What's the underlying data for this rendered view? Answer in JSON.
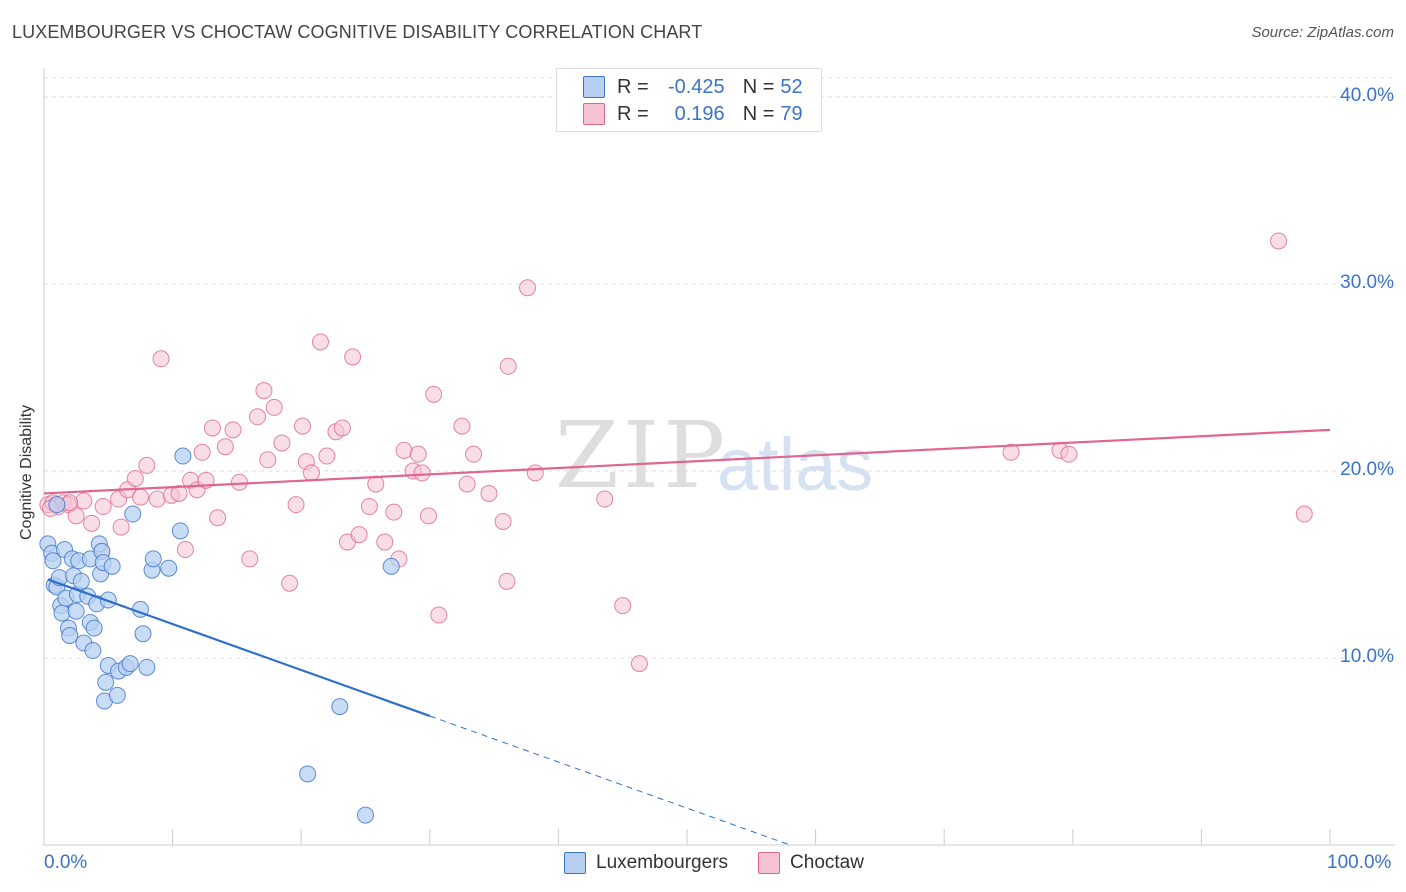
{
  "title": "LUXEMBOURGER VS CHOCTAW COGNITIVE DISABILITY CORRELATION CHART",
  "source": "Source: ZipAtlas.com",
  "watermark": {
    "zip": "ZIP",
    "atlas": "atlas"
  },
  "colors": {
    "blue": "#3a73c9",
    "blue_fill": "#b7d0f2",
    "blue_line": "#2f6fcc",
    "pink": "#e0668e",
    "pink_fill": "#f6c3d3",
    "grid": "#dddddd"
  },
  "legend": {
    "rows": [
      {
        "swatch": "blue",
        "r_label": "R =",
        "r_value": "-0.425",
        "n_label": "N =",
        "n_value": "52"
      },
      {
        "swatch": "pink",
        "r_label": "R =",
        "r_value": "0.196",
        "n_label": "N =",
        "n_value": "79"
      }
    ]
  },
  "bottom_legend": [
    "Luxembourgers",
    "Choctaw"
  ],
  "chart_data": {
    "type": "scatter",
    "title": "LUXEMBOURGER VS CHOCTAW COGNITIVE DISABILITY CORRELATION CHART",
    "xlabel": "",
    "ylabel": "Cognitive Disability",
    "xlim": [
      0,
      100
    ],
    "ylim": [
      0,
      40
    ],
    "x_tick_labels": [
      "0.0%",
      "100.0%"
    ],
    "y_tick_values": [
      10,
      20,
      30,
      40
    ],
    "y_tick_labels": [
      "10.0%",
      "20.0%",
      "30.0%",
      "40.0%"
    ],
    "series": [
      {
        "name": "Luxembourgers",
        "color": "blue",
        "r": -0.425,
        "n": 52,
        "trend": {
          "x0": 0.3,
          "y0": 14.2,
          "x1": 30,
          "y1": 6.9,
          "dash_to_x": 58,
          "dash_to_y": 0
        },
        "points": [
          [
            0.3,
            16.1
          ],
          [
            0.6,
            15.6
          ],
          [
            0.7,
            15.2
          ],
          [
            0.8,
            13.9
          ],
          [
            1.0,
            13.8
          ],
          [
            1.2,
            14.3
          ],
          [
            1.3,
            12.8
          ],
          [
            1.4,
            12.4
          ],
          [
            1.6,
            15.8
          ],
          [
            1.7,
            13.2
          ],
          [
            1.9,
            11.6
          ],
          [
            2.0,
            11.2
          ],
          [
            2.2,
            15.3
          ],
          [
            2.3,
            14.4
          ],
          [
            2.5,
            12.5
          ],
          [
            2.6,
            13.4
          ],
          [
            2.7,
            15.2
          ],
          [
            2.9,
            14.1
          ],
          [
            3.1,
            10.8
          ],
          [
            3.4,
            13.3
          ],
          [
            3.6,
            11.9
          ],
          [
            3.6,
            15.3
          ],
          [
            3.8,
            10.4
          ],
          [
            3.9,
            11.6
          ],
          [
            4.1,
            12.9
          ],
          [
            4.3,
            16.1
          ],
          [
            4.4,
            14.5
          ],
          [
            4.5,
            15.7
          ],
          [
            4.6,
            15.1
          ],
          [
            4.7,
            7.7
          ],
          [
            4.8,
            8.7
          ],
          [
            5.0,
            13.1
          ],
          [
            5.0,
            9.6
          ],
          [
            5.3,
            14.9
          ],
          [
            5.7,
            8.0
          ],
          [
            5.8,
            9.3
          ],
          [
            6.4,
            9.5
          ],
          [
            6.7,
            9.7
          ],
          [
            6.9,
            17.7
          ],
          [
            7.5,
            12.6
          ],
          [
            7.7,
            11.3
          ],
          [
            8.0,
            9.5
          ],
          [
            8.4,
            14.7
          ],
          [
            8.5,
            15.3
          ],
          [
            9.7,
            14.8
          ],
          [
            10.6,
            16.8
          ],
          [
            10.8,
            20.8
          ],
          [
            20.5,
            3.8
          ],
          [
            23.0,
            7.4
          ],
          [
            25.0,
            1.6
          ],
          [
            27.0,
            14.9
          ],
          [
            1.0,
            18.2
          ]
        ]
      },
      {
        "name": "Choctaw",
        "color": "pink",
        "r": 0.196,
        "n": 79,
        "trend": {
          "x0": 0,
          "y0": 18.8,
          "x1": 100,
          "y1": 22.2
        },
        "points": [
          [
            0.3,
            18.2
          ],
          [
            0.7,
            18.3
          ],
          [
            1.1,
            18.1
          ],
          [
            1.5,
            18.3
          ],
          [
            1.9,
            18.2
          ],
          [
            2.5,
            17.6
          ],
          [
            3.1,
            18.4
          ],
          [
            3.7,
            17.2
          ],
          [
            4.5,
            15.7
          ],
          [
            4.6,
            18.1
          ],
          [
            5.8,
            18.5
          ],
          [
            6.0,
            17.0
          ],
          [
            6.5,
            19.0
          ],
          [
            7.1,
            19.6
          ],
          [
            7.5,
            18.6
          ],
          [
            8.0,
            20.3
          ],
          [
            8.8,
            18.5
          ],
          [
            9.1,
            26.0
          ],
          [
            9.9,
            18.7
          ],
          [
            10.5,
            18.8
          ],
          [
            11.0,
            15.8
          ],
          [
            11.4,
            19.5
          ],
          [
            11.9,
            19.0
          ],
          [
            12.3,
            21.0
          ],
          [
            12.6,
            19.5
          ],
          [
            13.1,
            22.3
          ],
          [
            13.5,
            17.5
          ],
          [
            14.1,
            21.3
          ],
          [
            14.7,
            22.2
          ],
          [
            15.2,
            19.4
          ],
          [
            16.0,
            15.3
          ],
          [
            16.6,
            22.9
          ],
          [
            17.1,
            24.3
          ],
          [
            17.4,
            20.6
          ],
          [
            17.9,
            23.4
          ],
          [
            18.5,
            21.5
          ],
          [
            19.1,
            14.0
          ],
          [
            19.6,
            18.2
          ],
          [
            20.1,
            22.4
          ],
          [
            20.4,
            20.5
          ],
          [
            20.8,
            19.9
          ],
          [
            21.5,
            26.9
          ],
          [
            22.0,
            20.8
          ],
          [
            22.7,
            22.1
          ],
          [
            23.2,
            22.3
          ],
          [
            23.6,
            16.2
          ],
          [
            24.0,
            26.1
          ],
          [
            24.5,
            16.6
          ],
          [
            25.3,
            18.1
          ],
          [
            25.8,
            19.3
          ],
          [
            26.5,
            16.2
          ],
          [
            27.2,
            17.8
          ],
          [
            27.6,
            15.3
          ],
          [
            28.0,
            21.1
          ],
          [
            28.7,
            20.0
          ],
          [
            29.1,
            20.9
          ],
          [
            29.4,
            19.9
          ],
          [
            29.9,
            17.6
          ],
          [
            30.3,
            24.1
          ],
          [
            30.7,
            12.3
          ],
          [
            32.5,
            22.4
          ],
          [
            32.9,
            19.3
          ],
          [
            33.4,
            20.9
          ],
          [
            34.6,
            18.8
          ],
          [
            35.7,
            17.3
          ],
          [
            36.1,
            25.6
          ],
          [
            37.6,
            29.8
          ],
          [
            36.0,
            14.1
          ],
          [
            38.2,
            19.9
          ],
          [
            43.6,
            18.5
          ],
          [
            45.0,
            12.8
          ],
          [
            46.3,
            9.7
          ],
          [
            75.2,
            21.0
          ],
          [
            79.0,
            21.1
          ],
          [
            79.7,
            20.9
          ],
          [
            96.0,
            32.3
          ],
          [
            98.0,
            17.7
          ],
          [
            0.5,
            18.0
          ],
          [
            2.0,
            18.3
          ]
        ]
      }
    ]
  }
}
